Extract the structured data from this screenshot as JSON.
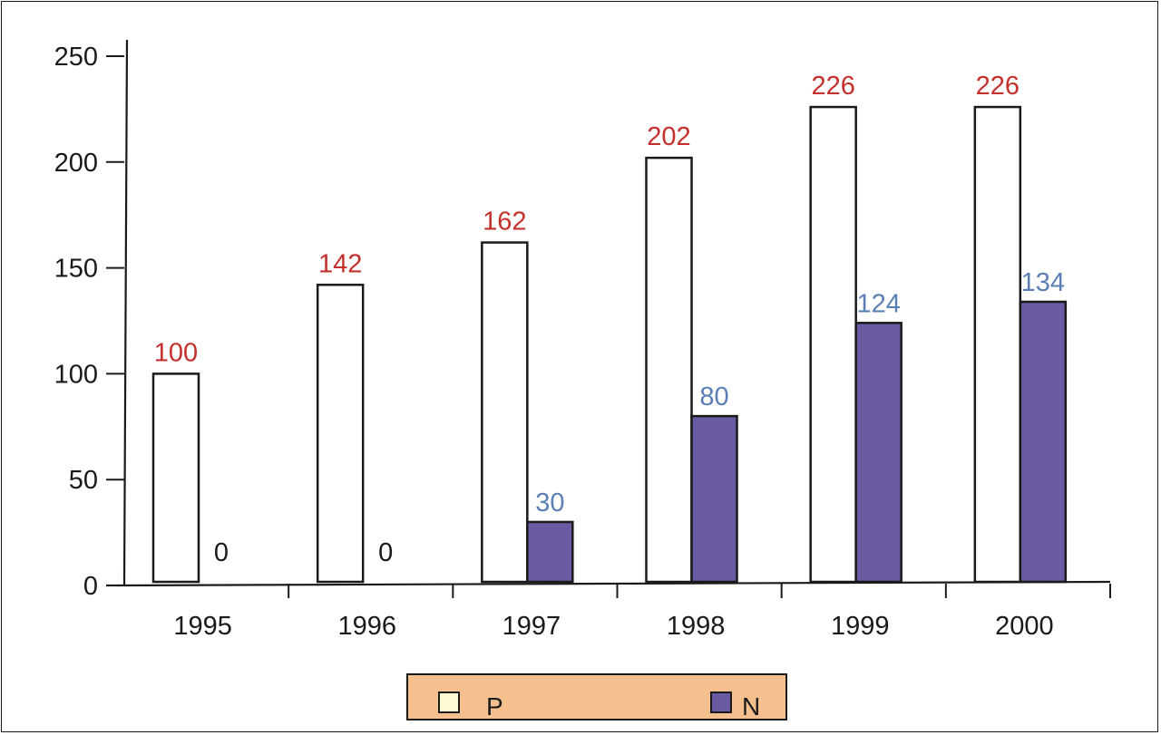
{
  "chart_data": {
    "type": "bar",
    "categories": [
      "1995",
      "1996",
      "1997",
      "1998",
      "1999",
      "2000"
    ],
    "series": [
      {
        "name": "P",
        "values": [
          100,
          142,
          162,
          202,
          226,
          226
        ],
        "color": "#ffffff",
        "label_color": "#c4302b"
      },
      {
        "name": "N",
        "values": [
          0,
          0,
          30,
          80,
          124,
          134
        ],
        "color": "#6a5aa3",
        "label_color": "#5b7fb5"
      }
    ],
    "data_labels": {
      "P": [
        "100",
        "142",
        "162",
        "202",
        "226",
        "226"
      ],
      "N": [
        "0",
        "0",
        "30",
        "80",
        "124",
        "134"
      ]
    },
    "y_ticks": [
      "0",
      "50",
      "100",
      "150",
      "200",
      "250"
    ],
    "ylim": [
      0,
      250
    ],
    "title": "",
    "xlabel": "",
    "ylabel": "",
    "grid": false,
    "legend": {
      "position": "bottom",
      "background": "#f5c08e",
      "items": [
        {
          "label": "P",
          "swatch": "#fdf9d2"
        },
        {
          "label": "N",
          "swatch": "#6a5aa3"
        }
      ]
    },
    "zero_label_color": "#1a1a1a",
    "axis_color": "#1a1a1a"
  }
}
